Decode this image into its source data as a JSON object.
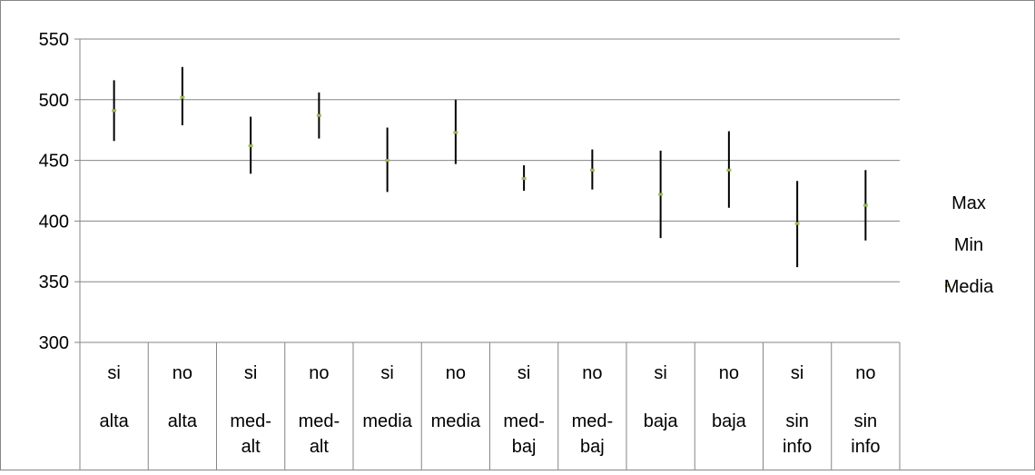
{
  "chart_data": {
    "type": "stock-hlc",
    "title": "",
    "xlabel": "",
    "ylabel": "",
    "ylim": [
      300,
      550
    ],
    "y_ticks": [
      300,
      350,
      400,
      450,
      500,
      550
    ],
    "grid": true,
    "legend_position": "right",
    "categories": [
      [
        "si",
        "alta"
      ],
      [
        "no",
        "alta"
      ],
      [
        "si",
        "med-alt"
      ],
      [
        "no",
        "med-alt"
      ],
      [
        "si",
        "media"
      ],
      [
        "no",
        "media"
      ],
      [
        "si",
        "med-baj"
      ],
      [
        "no",
        "med-baj"
      ],
      [
        "si",
        "baja"
      ],
      [
        "no",
        "baja"
      ],
      [
        "si",
        "sin info"
      ],
      [
        "no",
        "sin info"
      ]
    ],
    "series": [
      {
        "name": "Max",
        "values": [
          516,
          527,
          486,
          506,
          477,
          500,
          446,
          459,
          458,
          474,
          433,
          442
        ]
      },
      {
        "name": "Min",
        "values": [
          466,
          479,
          439,
          468,
          424,
          447,
          425,
          426,
          386,
          411,
          362,
          384
        ]
      },
      {
        "name": "Media",
        "values": [
          491,
          502,
          462,
          487,
          450,
          473,
          435,
          442,
          422,
          442,
          398,
          413
        ]
      }
    ],
    "colors": {
      "range_line": "#000000",
      "media_marker": "#9bbb59",
      "gridline": "#868686",
      "axis": "#868686"
    }
  }
}
